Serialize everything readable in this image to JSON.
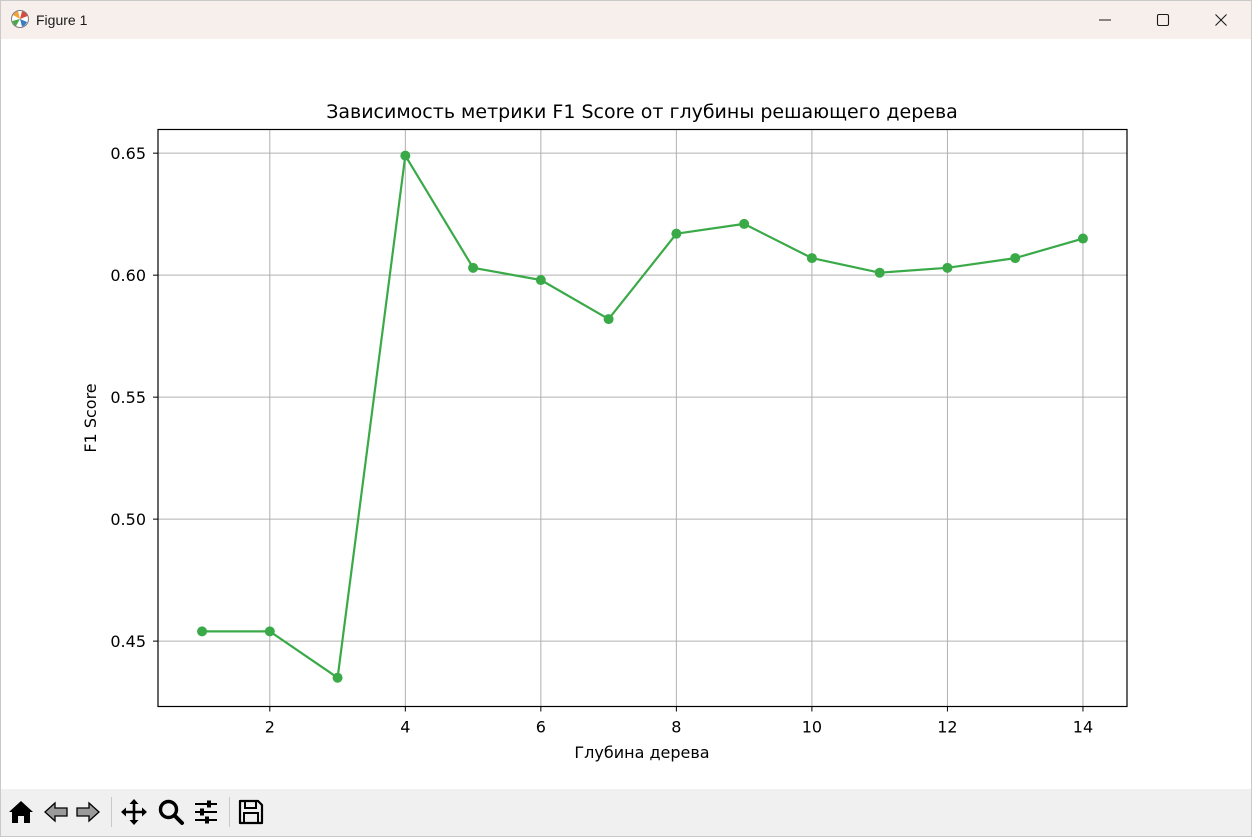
{
  "window": {
    "title": "Figure 1",
    "controls": [
      "minimize-icon",
      "maximize-icon",
      "close-icon"
    ]
  },
  "toolbar": {
    "items": [
      "home-icon",
      "back-icon",
      "forward-icon",
      "pan-icon",
      "zoom-icon",
      "configure-subplots-icon",
      "save-icon"
    ]
  },
  "colors": {
    "line": "#3aaa48",
    "grid": "#b0b0b0",
    "titlebar": "#f7efec",
    "toolbar": "#f0f0f0"
  },
  "chart_data": {
    "type": "line",
    "title": "Зависимость метрики F1 Score от глубины решающего дерева",
    "xlabel": "Глубина дерева",
    "ylabel": "F1 Score",
    "x": [
      1,
      2,
      3,
      4,
      5,
      6,
      7,
      8,
      9,
      10,
      11,
      12,
      13,
      14
    ],
    "y": [
      0.454,
      0.454,
      0.435,
      0.649,
      0.603,
      0.598,
      0.582,
      0.617,
      0.621,
      0.607,
      0.601,
      0.603,
      0.607,
      0.615
    ],
    "xlim": [
      0.35,
      14.65
    ],
    "ylim": [
      0.4232,
      0.6597
    ],
    "xticks": [
      2,
      4,
      6,
      8,
      10,
      12,
      14
    ],
    "xtick_labels": [
      "2",
      "4",
      "6",
      "8",
      "10",
      "12",
      "14"
    ],
    "yticks": [
      0.45,
      0.5,
      0.55,
      0.6,
      0.65
    ],
    "ytick_labels": [
      "0.45",
      "0.50",
      "0.55",
      "0.60",
      "0.65"
    ],
    "grid": true,
    "marker": "circle"
  }
}
